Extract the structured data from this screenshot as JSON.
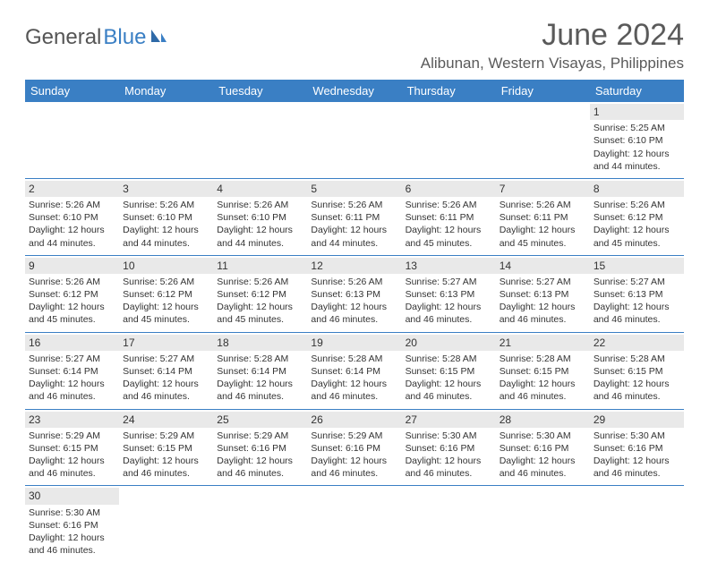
{
  "brand": {
    "part1": "General",
    "part2": "Blue"
  },
  "title": "June 2024",
  "location": "Alibunan, Western Visayas, Philippines",
  "colors": {
    "header_bg": "#3a7fc4",
    "header_text": "#ffffff",
    "daynum_bg": "#e9e9e9",
    "border": "#3a7fc4",
    "text": "#333333",
    "title_color": "#5a5a5a"
  },
  "weekdays": [
    "Sunday",
    "Monday",
    "Tuesday",
    "Wednesday",
    "Thursday",
    "Friday",
    "Saturday"
  ],
  "weeks": [
    [
      null,
      null,
      null,
      null,
      null,
      null,
      {
        "n": "1",
        "sr": "Sunrise: 5:25 AM",
        "ss": "Sunset: 6:10 PM",
        "dl1": "Daylight: 12 hours",
        "dl2": "and 44 minutes."
      }
    ],
    [
      {
        "n": "2",
        "sr": "Sunrise: 5:26 AM",
        "ss": "Sunset: 6:10 PM",
        "dl1": "Daylight: 12 hours",
        "dl2": "and 44 minutes."
      },
      {
        "n": "3",
        "sr": "Sunrise: 5:26 AM",
        "ss": "Sunset: 6:10 PM",
        "dl1": "Daylight: 12 hours",
        "dl2": "and 44 minutes."
      },
      {
        "n": "4",
        "sr": "Sunrise: 5:26 AM",
        "ss": "Sunset: 6:10 PM",
        "dl1": "Daylight: 12 hours",
        "dl2": "and 44 minutes."
      },
      {
        "n": "5",
        "sr": "Sunrise: 5:26 AM",
        "ss": "Sunset: 6:11 PM",
        "dl1": "Daylight: 12 hours",
        "dl2": "and 44 minutes."
      },
      {
        "n": "6",
        "sr": "Sunrise: 5:26 AM",
        "ss": "Sunset: 6:11 PM",
        "dl1": "Daylight: 12 hours",
        "dl2": "and 45 minutes."
      },
      {
        "n": "7",
        "sr": "Sunrise: 5:26 AM",
        "ss": "Sunset: 6:11 PM",
        "dl1": "Daylight: 12 hours",
        "dl2": "and 45 minutes."
      },
      {
        "n": "8",
        "sr": "Sunrise: 5:26 AM",
        "ss": "Sunset: 6:12 PM",
        "dl1": "Daylight: 12 hours",
        "dl2": "and 45 minutes."
      }
    ],
    [
      {
        "n": "9",
        "sr": "Sunrise: 5:26 AM",
        "ss": "Sunset: 6:12 PM",
        "dl1": "Daylight: 12 hours",
        "dl2": "and 45 minutes."
      },
      {
        "n": "10",
        "sr": "Sunrise: 5:26 AM",
        "ss": "Sunset: 6:12 PM",
        "dl1": "Daylight: 12 hours",
        "dl2": "and 45 minutes."
      },
      {
        "n": "11",
        "sr": "Sunrise: 5:26 AM",
        "ss": "Sunset: 6:12 PM",
        "dl1": "Daylight: 12 hours",
        "dl2": "and 45 minutes."
      },
      {
        "n": "12",
        "sr": "Sunrise: 5:26 AM",
        "ss": "Sunset: 6:13 PM",
        "dl1": "Daylight: 12 hours",
        "dl2": "and 46 minutes."
      },
      {
        "n": "13",
        "sr": "Sunrise: 5:27 AM",
        "ss": "Sunset: 6:13 PM",
        "dl1": "Daylight: 12 hours",
        "dl2": "and 46 minutes."
      },
      {
        "n": "14",
        "sr": "Sunrise: 5:27 AM",
        "ss": "Sunset: 6:13 PM",
        "dl1": "Daylight: 12 hours",
        "dl2": "and 46 minutes."
      },
      {
        "n": "15",
        "sr": "Sunrise: 5:27 AM",
        "ss": "Sunset: 6:13 PM",
        "dl1": "Daylight: 12 hours",
        "dl2": "and 46 minutes."
      }
    ],
    [
      {
        "n": "16",
        "sr": "Sunrise: 5:27 AM",
        "ss": "Sunset: 6:14 PM",
        "dl1": "Daylight: 12 hours",
        "dl2": "and 46 minutes."
      },
      {
        "n": "17",
        "sr": "Sunrise: 5:27 AM",
        "ss": "Sunset: 6:14 PM",
        "dl1": "Daylight: 12 hours",
        "dl2": "and 46 minutes."
      },
      {
        "n": "18",
        "sr": "Sunrise: 5:28 AM",
        "ss": "Sunset: 6:14 PM",
        "dl1": "Daylight: 12 hours",
        "dl2": "and 46 minutes."
      },
      {
        "n": "19",
        "sr": "Sunrise: 5:28 AM",
        "ss": "Sunset: 6:14 PM",
        "dl1": "Daylight: 12 hours",
        "dl2": "and 46 minutes."
      },
      {
        "n": "20",
        "sr": "Sunrise: 5:28 AM",
        "ss": "Sunset: 6:15 PM",
        "dl1": "Daylight: 12 hours",
        "dl2": "and 46 minutes."
      },
      {
        "n": "21",
        "sr": "Sunrise: 5:28 AM",
        "ss": "Sunset: 6:15 PM",
        "dl1": "Daylight: 12 hours",
        "dl2": "and 46 minutes."
      },
      {
        "n": "22",
        "sr": "Sunrise: 5:28 AM",
        "ss": "Sunset: 6:15 PM",
        "dl1": "Daylight: 12 hours",
        "dl2": "and 46 minutes."
      }
    ],
    [
      {
        "n": "23",
        "sr": "Sunrise: 5:29 AM",
        "ss": "Sunset: 6:15 PM",
        "dl1": "Daylight: 12 hours",
        "dl2": "and 46 minutes."
      },
      {
        "n": "24",
        "sr": "Sunrise: 5:29 AM",
        "ss": "Sunset: 6:15 PM",
        "dl1": "Daylight: 12 hours",
        "dl2": "and 46 minutes."
      },
      {
        "n": "25",
        "sr": "Sunrise: 5:29 AM",
        "ss": "Sunset: 6:16 PM",
        "dl1": "Daylight: 12 hours",
        "dl2": "and 46 minutes."
      },
      {
        "n": "26",
        "sr": "Sunrise: 5:29 AM",
        "ss": "Sunset: 6:16 PM",
        "dl1": "Daylight: 12 hours",
        "dl2": "and 46 minutes."
      },
      {
        "n": "27",
        "sr": "Sunrise: 5:30 AM",
        "ss": "Sunset: 6:16 PM",
        "dl1": "Daylight: 12 hours",
        "dl2": "and 46 minutes."
      },
      {
        "n": "28",
        "sr": "Sunrise: 5:30 AM",
        "ss": "Sunset: 6:16 PM",
        "dl1": "Daylight: 12 hours",
        "dl2": "and 46 minutes."
      },
      {
        "n": "29",
        "sr": "Sunrise: 5:30 AM",
        "ss": "Sunset: 6:16 PM",
        "dl1": "Daylight: 12 hours",
        "dl2": "and 46 minutes."
      }
    ],
    [
      {
        "n": "30",
        "sr": "Sunrise: 5:30 AM",
        "ss": "Sunset: 6:16 PM",
        "dl1": "Daylight: 12 hours",
        "dl2": "and 46 minutes."
      },
      null,
      null,
      null,
      null,
      null,
      null
    ]
  ]
}
